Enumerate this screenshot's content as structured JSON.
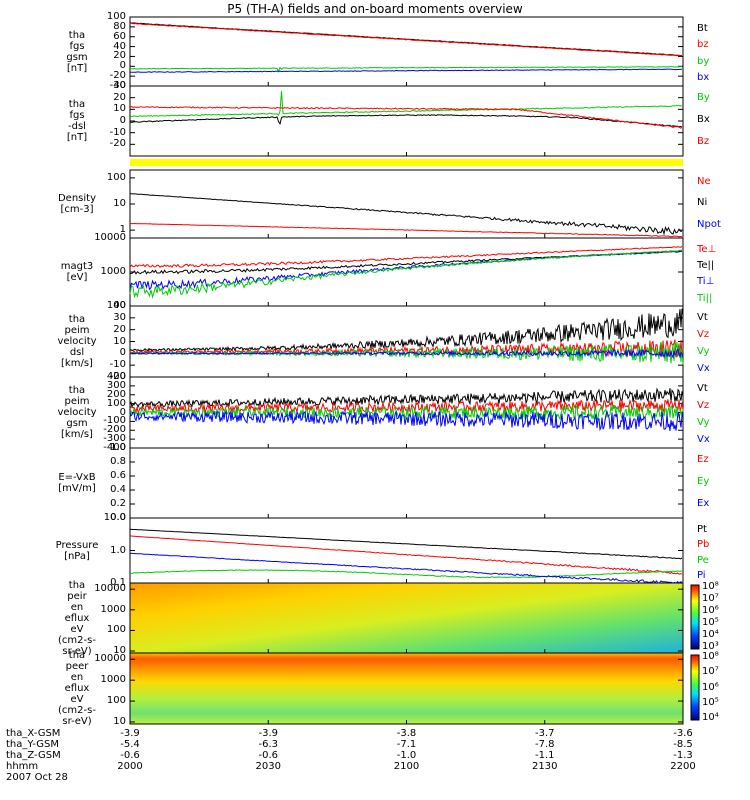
{
  "title": "P5 (TH-A) fields and on-board moments overview",
  "colors": {
    "black": "#000000",
    "red": "#ff0000",
    "green": "#00cc00",
    "blue": "#0000ff",
    "yellow": "#ffff00"
  },
  "chart_data": {
    "type": "line",
    "time_axis": {
      "ticks": [
        "2000",
        "2030",
        "2100",
        "2130",
        "2200"
      ],
      "ephemeris": [
        {
          "label": "tha_X-GSM",
          "values": [
            "-3.9",
            "-3.9",
            "-3.8",
            "-3.7",
            "-3.6"
          ]
        },
        {
          "label": "tha_Y-GSM",
          "values": [
            "-5.4",
            "-6.3",
            "-7.1",
            "-7.8",
            "-8.5"
          ]
        },
        {
          "label": "tha_Z-GSM",
          "values": [
            "-0.6",
            "-0.6",
            "-1.0",
            "-1.1",
            "-1.3"
          ]
        },
        {
          "label": "hhmm",
          "values": []
        }
      ],
      "date": "2007 Oct 28"
    },
    "panels": [
      {
        "name": "fgs-gsm",
        "ylabel": [
          "tha",
          "fgs",
          "gsm",
          "[nT]"
        ],
        "ylim": [
          -40,
          100
        ],
        "scale": "linear",
        "ticks": [
          "100",
          "80",
          "60",
          "40",
          "20",
          "0",
          "-20",
          "-40"
        ],
        "legend": [
          {
            "label": "Bt",
            "color": "black"
          },
          {
            "label": "bz",
            "color": "red"
          },
          {
            "label": "by",
            "color": "green"
          },
          {
            "label": "bx",
            "color": "blue"
          }
        ]
      },
      {
        "name": "fgs-dsl",
        "ylabel": [
          "tha",
          "fgs",
          "-dsl",
          "[nT]"
        ],
        "ylim": [
          -30,
          30
        ],
        "scale": "linear",
        "ticks": [
          "30",
          "20",
          "10",
          "0",
          "-10",
          "-20"
        ],
        "legend": [
          {
            "label": "By",
            "color": "green"
          },
          {
            "label": "Bx",
            "color": "black"
          },
          {
            "label": "Bz",
            "color": "red"
          }
        ]
      },
      {
        "name": "density",
        "ylabel": [
          "Density",
          "[cm-3]"
        ],
        "ylim": [
          0.5,
          200
        ],
        "scale": "log",
        "ticks": [
          "100",
          "10",
          "1"
        ],
        "legend": [
          {
            "label": "Ne",
            "color": "red"
          },
          {
            "label": "Ni",
            "color": "black"
          },
          {
            "label": "Npot",
            "color": "blue"
          }
        ]
      },
      {
        "name": "temperature",
        "ylabel": [
          "magt3",
          "[eV]"
        ],
        "ylim": [
          100,
          10000
        ],
        "scale": "log",
        "ticks": [
          "10000",
          "1000",
          "100"
        ],
        "legend": [
          {
            "label": "Te⊥",
            "color": "red"
          },
          {
            "label": "Te||",
            "color": "black"
          },
          {
            "label": "Ti⊥",
            "color": "blue"
          },
          {
            "label": "Ti||",
            "color": "green"
          }
        ]
      },
      {
        "name": "velocity-dsl",
        "ylabel": [
          "tha",
          "peim",
          "velocity",
          "dsl",
          "[km/s]"
        ],
        "ylim": [
          -20,
          40
        ],
        "scale": "linear",
        "ticks": [
          "40",
          "30",
          "20",
          "10",
          "0",
          "-10",
          "-20"
        ],
        "legend": [
          {
            "label": "Vt",
            "color": "black"
          },
          {
            "label": "Vz",
            "color": "red"
          },
          {
            "label": "Vy",
            "color": "green"
          },
          {
            "label": "Vx",
            "color": "blue"
          }
        ]
      },
      {
        "name": "velocity-gsm",
        "ylabel": [
          "tha",
          "peim",
          "velocity",
          "gsm",
          "[km/s]"
        ],
        "ylim": [
          -400,
          400
        ],
        "scale": "linear",
        "ticks": [
          "400",
          "300",
          "200",
          "100",
          "0",
          "-100",
          "-200",
          "-300",
          "-400"
        ],
        "legend": [
          {
            "label": "Vt",
            "color": "black"
          },
          {
            "label": "Vz",
            "color": "red"
          },
          {
            "label": "Vy",
            "color": "green"
          },
          {
            "label": "Vx",
            "color": "blue"
          }
        ]
      },
      {
        "name": "efield",
        "ylabel": [
          "E=-VxB",
          "[mV/m]"
        ],
        "ylim": [
          0,
          1
        ],
        "scale": "linear",
        "ticks": [
          "1.0",
          "0.8",
          "0.6",
          "0.4",
          "0.2",
          "0.0"
        ],
        "legend": [
          {
            "label": "Ez",
            "color": "red"
          },
          {
            "label": "Ey",
            "color": "green"
          },
          {
            "label": "Ex",
            "color": "blue"
          }
        ]
      },
      {
        "name": "pressure",
        "ylabel": [
          "Pressure",
          "[nPa]"
        ],
        "ylim": [
          0.1,
          10
        ],
        "scale": "log",
        "ticks": [
          "10.0",
          "1.0",
          "0.1"
        ],
        "legend": [
          {
            "label": "Pt",
            "color": "black"
          },
          {
            "label": "Pb",
            "color": "red"
          },
          {
            "label": "Pe",
            "color": "green"
          },
          {
            "label": "Pi",
            "color": "blue"
          }
        ]
      },
      {
        "name": "ion-spectrogram",
        "ylabel": [
          "tha",
          "peir",
          "en",
          "eflux",
          "eV",
          "(cm2-s-",
          "sr-eV)"
        ],
        "ylim": [
          8,
          20000
        ],
        "scale": "log",
        "ticks": [
          "10000",
          "1000",
          "100",
          "10"
        ],
        "colorbar": [
          "10⁸",
          "10⁷",
          "10⁶",
          "10⁵",
          "10⁴",
          "10³"
        ]
      },
      {
        "name": "electron-spectrogram",
        "ylabel": [
          "tha",
          "peer",
          "en",
          "eflux",
          "eV",
          "(cm2-s-",
          "sr-eV)"
        ],
        "ylim": [
          8,
          20000
        ],
        "scale": "log",
        "ticks": [
          "10000",
          "1000",
          "100",
          "10"
        ],
        "colorbar": [
          "10⁸",
          "10⁷",
          "10⁶",
          "10⁵",
          "10⁴"
        ]
      }
    ]
  }
}
